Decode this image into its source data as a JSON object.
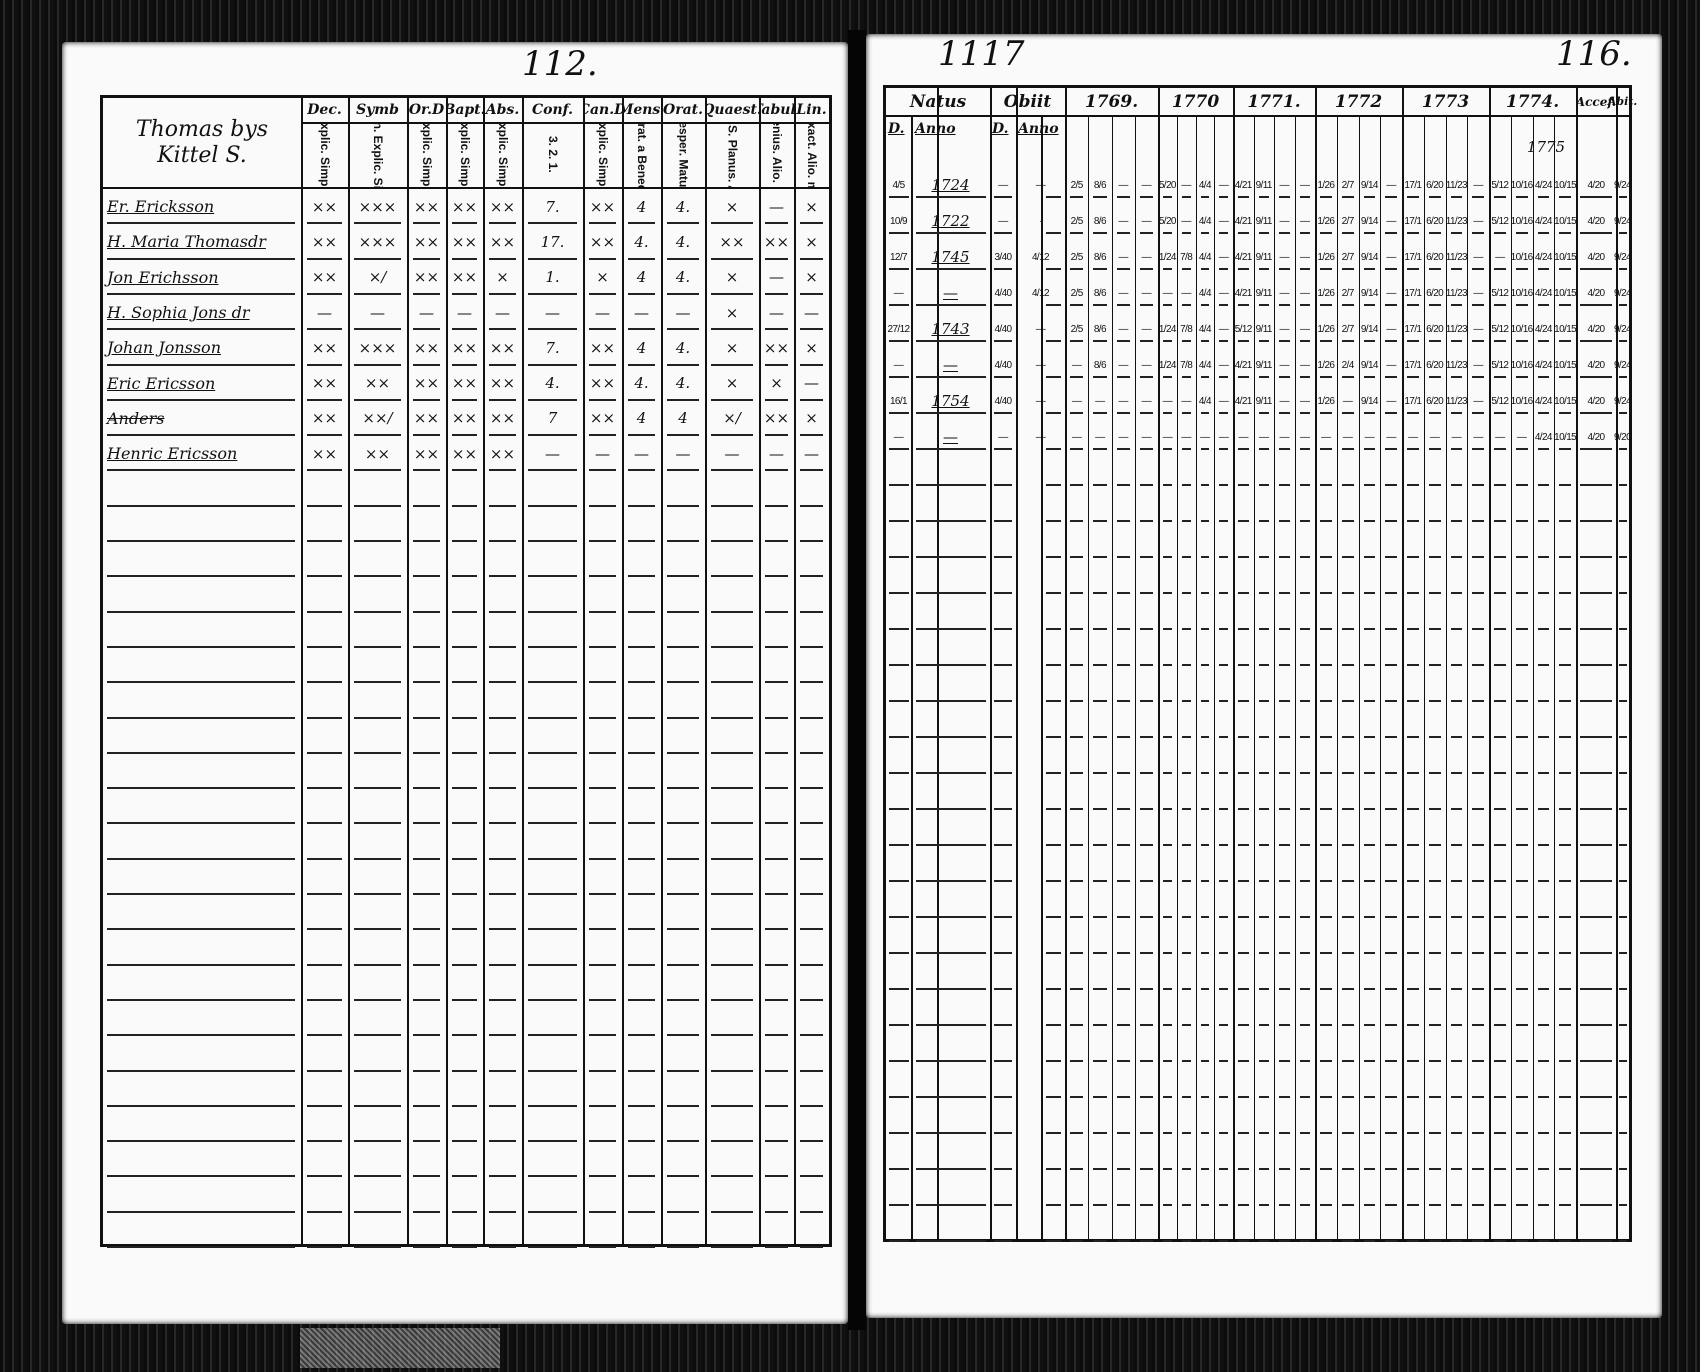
{
  "left_page": {
    "page_number": "112.",
    "household_title": "Thomas bys Kittel S.",
    "columns": [
      {
        "label": "Dec.",
        "sub": "Explic. Simpl."
      },
      {
        "label": "Symb",
        "sub": "Athan. Explic. Simpl."
      },
      {
        "label": "Or.D",
        "sub": "Explic. Simpl."
      },
      {
        "label": "Bapt.",
        "sub": "Explic. Simpl."
      },
      {
        "label": "Abs.",
        "sub": "Explic. Simpl."
      },
      {
        "label": "Conf.",
        "sub": "3. 2. 1."
      },
      {
        "label": "Can.D",
        "sub": "Explic. Simpl."
      },
      {
        "label": "Mens.",
        "sub": "Grat. a Bened."
      },
      {
        "label": "Orat.",
        "sub": "Vesper. Matut."
      },
      {
        "label": "Quaest.",
        "sub": "Dicta S.S. Planus. Alio. m."
      },
      {
        "label": "Tabul.",
        "sub": "Plenius. Alio. m."
      },
      {
        "label": "Lin.",
        "sub": "Exact. Alio. m."
      }
    ],
    "rows": [
      {
        "name": "Er. Ericksson",
        "struck": false,
        "values": [
          "××",
          "×××",
          "××",
          "××",
          "××",
          "7.",
          "××",
          "4",
          "4.",
          "×",
          "—",
          "×"
        ]
      },
      {
        "name": "H. Maria Thomasdr",
        "struck": false,
        "values": [
          "××",
          "×××",
          "××",
          "××",
          "××",
          "17.",
          "××",
          "4.",
          "4.",
          "××",
          "××",
          "×"
        ]
      },
      {
        "name": "Jon Erichsson",
        "struck": false,
        "values": [
          "××",
          "×/",
          "××",
          "××",
          "×",
          "1.",
          "×",
          "4",
          "4.",
          "×",
          "—",
          "×"
        ]
      },
      {
        "name": "H. Sophia Jons dr",
        "struck": false,
        "values": [
          "—",
          "—",
          "—",
          "—",
          "—",
          "—",
          "—",
          "—",
          "—",
          "×",
          "—",
          "—"
        ]
      },
      {
        "name": "Johan Jonsson",
        "struck": false,
        "values": [
          "××",
          "×××",
          "××",
          "××",
          "××",
          "7.",
          "××",
          "4",
          "4.",
          "×",
          "××",
          "×"
        ]
      },
      {
        "name": "Eric Ericsson",
        "struck": false,
        "values": [
          "××",
          "××",
          "××",
          "××",
          "××",
          "4.",
          "××",
          "4.",
          "4.",
          "×",
          "×",
          "—"
        ]
      },
      {
        "name": "Anders",
        "struck": true,
        "values": [
          "××",
          "××/",
          "××",
          "××",
          "××",
          "7",
          "××",
          "4",
          "4",
          "×/",
          "××",
          "×"
        ]
      },
      {
        "name": "Henric Ericsson",
        "struck": false,
        "values": [
          "××",
          "××",
          "××",
          "××",
          "××",
          "—",
          "—",
          "—",
          "—",
          "—",
          "—",
          "—"
        ]
      }
    ]
  },
  "right_page": {
    "page_number_left": "1117",
    "page_number_right": "116.",
    "headers": {
      "natus": "Natus",
      "obiit": "Obiit",
      "d": "D.",
      "anno": "Anno",
      "years": [
        "1769.",
        "1770",
        "1771.",
        "1772",
        "1773",
        "1774."
      ],
      "accef": "Accef.",
      "abit": "Abit."
    },
    "note_1775": "1775",
    "rows": [
      {
        "natus_d": "4/5",
        "natus_anno": "1724",
        "obiit_d": "—",
        "obiit_anno": "—",
        "years": [
          [
            "2/5",
            "8/6",
            "—",
            "—"
          ],
          [
            "5/20",
            "—",
            "4/4",
            "—"
          ],
          [
            "4/21",
            "9/11",
            "—",
            "—"
          ],
          [
            "1/26",
            "2/7",
            "9/14",
            "—"
          ],
          [
            "17/1",
            "6/20",
            "11/23",
            "—"
          ],
          [
            "5/12",
            "10/16",
            "4/24",
            "10/15"
          ]
        ],
        "accef": "4/20",
        "abit": "9/24"
      },
      {
        "natus_d": "10/9",
        "natus_anno": "1722",
        "obiit_d": "—",
        "obiit_anno": "·",
        "years": [
          [
            "2/5",
            "8/6",
            "—",
            "—"
          ],
          [
            "5/20",
            "—",
            "4/4",
            "—"
          ],
          [
            "4/21",
            "9/11",
            "—",
            "—"
          ],
          [
            "1/26",
            "2/7",
            "9/14",
            "—"
          ],
          [
            "17/1",
            "6/20",
            "11/23",
            "—"
          ],
          [
            "5/12",
            "10/16",
            "4/24",
            "10/15"
          ]
        ],
        "accef": "4/20",
        "abit": "9/24"
      },
      {
        "natus_d": "12/7",
        "natus_anno": "1745",
        "obiit_d": "3/40",
        "obiit_anno": "4/12",
        "years": [
          [
            "2/5",
            "8/6",
            "—",
            "—"
          ],
          [
            "1/24",
            "7/8",
            "4/4",
            "—"
          ],
          [
            "4/21",
            "9/11",
            "—",
            "—"
          ],
          [
            "1/26",
            "2/7",
            "9/14",
            "—"
          ],
          [
            "17/1",
            "6/20",
            "11/23",
            "—"
          ],
          [
            "—",
            "10/16",
            "4/24",
            "10/15"
          ]
        ],
        "accef": "4/20",
        "abit": "9/24"
      },
      {
        "natus_d": "—",
        "natus_anno": "—",
        "obiit_d": "4/40",
        "obiit_anno": "4/12",
        "years": [
          [
            "2/5",
            "8/6",
            "—",
            "—"
          ],
          [
            "—",
            "—",
            "4/4",
            "—"
          ],
          [
            "4/21",
            "9/11",
            "—",
            "—"
          ],
          [
            "1/26",
            "2/7",
            "9/14",
            "—"
          ],
          [
            "17/1",
            "6/20",
            "11/23",
            "—"
          ],
          [
            "5/12",
            "10/16",
            "4/24",
            "10/15"
          ]
        ],
        "accef": "4/20",
        "abit": "9/24"
      },
      {
        "natus_d": "27/12",
        "natus_anno": "1743",
        "obiit_d": "4/40",
        "obiit_anno": "—",
        "years": [
          [
            "2/5",
            "8/6",
            "—",
            "—"
          ],
          [
            "1/24",
            "7/8",
            "4/4",
            "—"
          ],
          [
            "5/12",
            "9/11",
            "—",
            "—"
          ],
          [
            "1/26",
            "2/7",
            "9/14",
            "—"
          ],
          [
            "17/1",
            "6/20",
            "11/23",
            "—"
          ],
          [
            "5/12",
            "10/16",
            "4/24",
            "10/15"
          ]
        ],
        "accef": "4/20",
        "abit": "9/24"
      },
      {
        "natus_d": "—",
        "natus_anno": "—",
        "obiit_d": "4/40",
        "obiit_anno": "—",
        "years": [
          [
            "—",
            "8/6",
            "—",
            "—"
          ],
          [
            "1/24",
            "7/8",
            "4/4",
            "—"
          ],
          [
            "4/21",
            "9/11",
            "—",
            "—"
          ],
          [
            "1/26",
            "2/4",
            "9/14",
            "—"
          ],
          [
            "17/1",
            "6/20",
            "11/23",
            "—"
          ],
          [
            "5/12",
            "10/16",
            "4/24",
            "10/15"
          ]
        ],
        "accef": "4/20",
        "abit": "9/24"
      },
      {
        "natus_d": "16/1",
        "natus_anno": "1754",
        "obiit_d": "4/40",
        "obiit_anno": "—",
        "years": [
          [
            "—",
            "—",
            "—",
            "—"
          ],
          [
            "—",
            "—",
            "4/4",
            "—"
          ],
          [
            "4/21",
            "9/11",
            "—",
            "—"
          ],
          [
            "1/26",
            "—",
            "9/14",
            "—"
          ],
          [
            "17/1",
            "6/20",
            "11/23",
            "—"
          ],
          [
            "5/12",
            "10/16",
            "4/24",
            "10/15"
          ]
        ],
        "accef": "4/20",
        "abit": "9/24"
      },
      {
        "natus_d": "—",
        "natus_anno": "—",
        "obiit_d": "—",
        "obiit_anno": "—",
        "years": [
          [
            "—",
            "—",
            "—",
            "—"
          ],
          [
            "—",
            "—",
            "—",
            "—"
          ],
          [
            "—",
            "—",
            "—",
            "—"
          ],
          [
            "—",
            "—",
            "—",
            "—"
          ],
          [
            "—",
            "—",
            "—",
            "—"
          ],
          [
            "—",
            "—",
            "4/24",
            "10/15"
          ]
        ],
        "accef": "4/20",
        "abit": "9/20"
      }
    ]
  }
}
